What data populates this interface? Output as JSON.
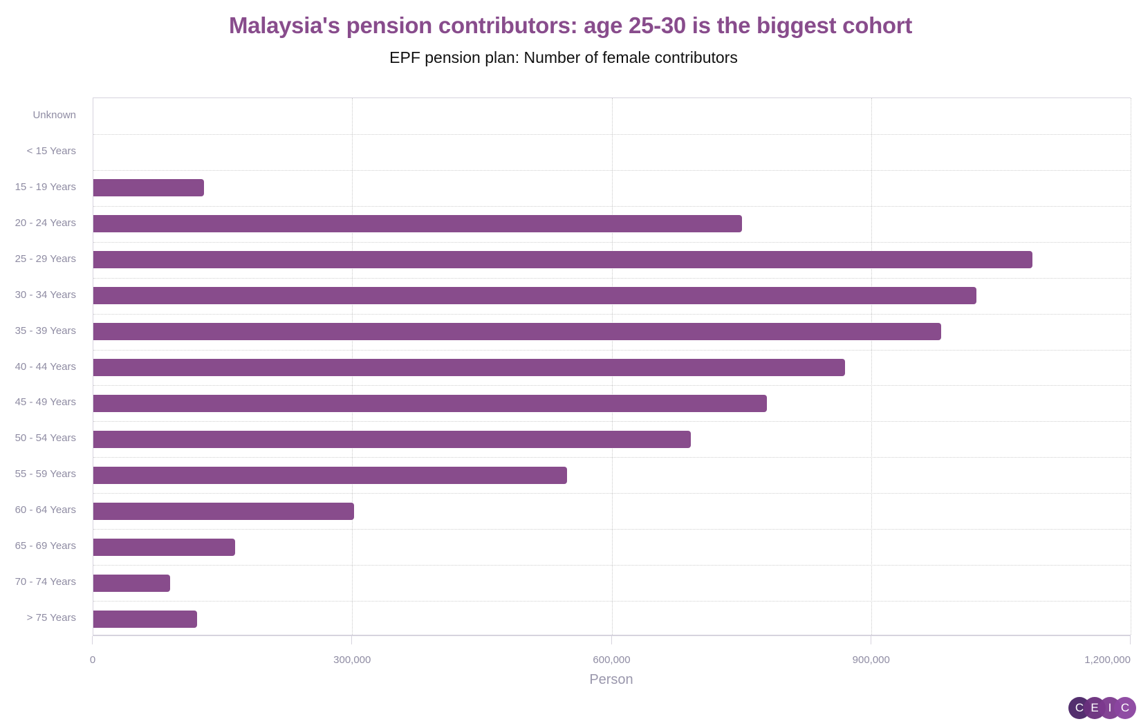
{
  "header": {
    "title": "Malaysia's pension contributors: age 25-30 is the biggest cohort",
    "subtitle": "EPF pension plan: Number of female contributors"
  },
  "colors": {
    "title": "#884c8c",
    "bar": "#884c8c",
    "axis_text": "#8f8ca3",
    "logo": [
      "#4a2467",
      "#6a2f7d",
      "#7d3a8f",
      "#8b44a0"
    ]
  },
  "axis": {
    "x_title": "Person",
    "x_ticks": [
      "0",
      "300,000",
      "600,000",
      "900,000",
      "1,200,000"
    ]
  },
  "logo": {
    "letters": [
      "C",
      "E",
      "I",
      "C"
    ]
  },
  "chart_data": {
    "type": "bar",
    "orientation": "horizontal",
    "title": "Malaysia's pension contributors: age 25-30 is the biggest cohort",
    "subtitle": "EPF pension plan: Number of female contributors",
    "xlabel": "Person",
    "ylabel": "",
    "xlim": [
      0,
      1200000
    ],
    "x_ticks": [
      0,
      300000,
      600000,
      900000,
      1200000
    ],
    "grid": true,
    "legend": null,
    "categories": [
      "Unknown",
      "< 15 Years",
      "15 - 19 Years",
      "20 - 24 Years",
      "25 - 29 Years",
      "30 - 34 Years",
      "35 - 39 Years",
      "40 - 44 Years",
      "45 - 49 Years",
      "50 - 54 Years",
      "55 - 59 Years",
      "60 - 64 Years",
      "65 - 69 Years",
      "70 - 74 Years",
      "> 75 Years"
    ],
    "values": [
      0,
      0,
      128000,
      750000,
      1086000,
      1021000,
      980000,
      869000,
      779000,
      691000,
      548000,
      301000,
      164000,
      89000,
      120000
    ],
    "source_logo": "CEIC"
  }
}
